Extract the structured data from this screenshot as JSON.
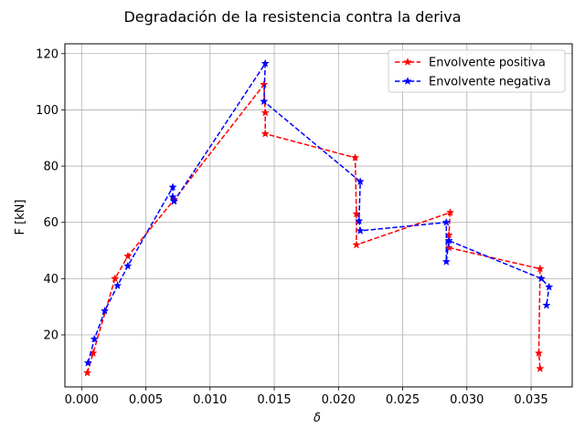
{
  "chart_data": {
    "type": "line",
    "title": "Degradación de la resistencia contra la deriva",
    "xlabel": "δ",
    "ylabel": "F [kN]",
    "xlim": [
      -0.0013,
      0.0382
    ],
    "ylim": [
      1.5,
      123.5
    ],
    "xticks": [
      "0.000",
      "0.005",
      "0.010",
      "0.015",
      "0.020",
      "0.025",
      "0.030",
      "0.035"
    ],
    "yticks": [
      "20",
      "40",
      "60",
      "80",
      "100",
      "120"
    ],
    "grid": true,
    "legend_position": "top-right",
    "series": [
      {
        "name": "Envolvente positiva",
        "color": "#ff0000",
        "linestyle": "dashed",
        "marker": "star",
        "x": [
          0.00045,
          0.0009,
          0.0026,
          0.0036,
          0.0072,
          0.0142,
          0.0143,
          0.0143,
          0.0213,
          0.0214,
          0.0214,
          0.0287,
          0.0286,
          0.0286,
          0.0357,
          0.0356,
          0.0357
        ],
        "y": [
          6.5,
          13.5,
          40.0,
          48.0,
          68.0,
          109.0,
          99.0,
          91.5,
          83.0,
          63.0,
          52.0,
          63.5,
          55.5,
          51.0,
          43.5,
          13.5,
          8.0
        ]
      },
      {
        "name": "Envolvente negativa",
        "color": "#0000ff",
        "linestyle": "dashed",
        "marker": "star",
        "x": [
          0.0005,
          0.001,
          0.0018,
          0.0028,
          0.0036,
          0.0071,
          0.0071,
          0.0072,
          0.0143,
          0.0142,
          0.0217,
          0.0216,
          0.0217,
          0.0284,
          0.0284,
          0.0286,
          0.0358,
          0.0364,
          0.0362
        ],
        "y": [
          10.0,
          18.5,
          28.5,
          37.5,
          44.5,
          72.5,
          69.0,
          67.5,
          116.5,
          103.0,
          74.5,
          60.5,
          57.0,
          60.0,
          46.0,
          53.5,
          40.0,
          37.0,
          30.5
        ]
      }
    ]
  }
}
